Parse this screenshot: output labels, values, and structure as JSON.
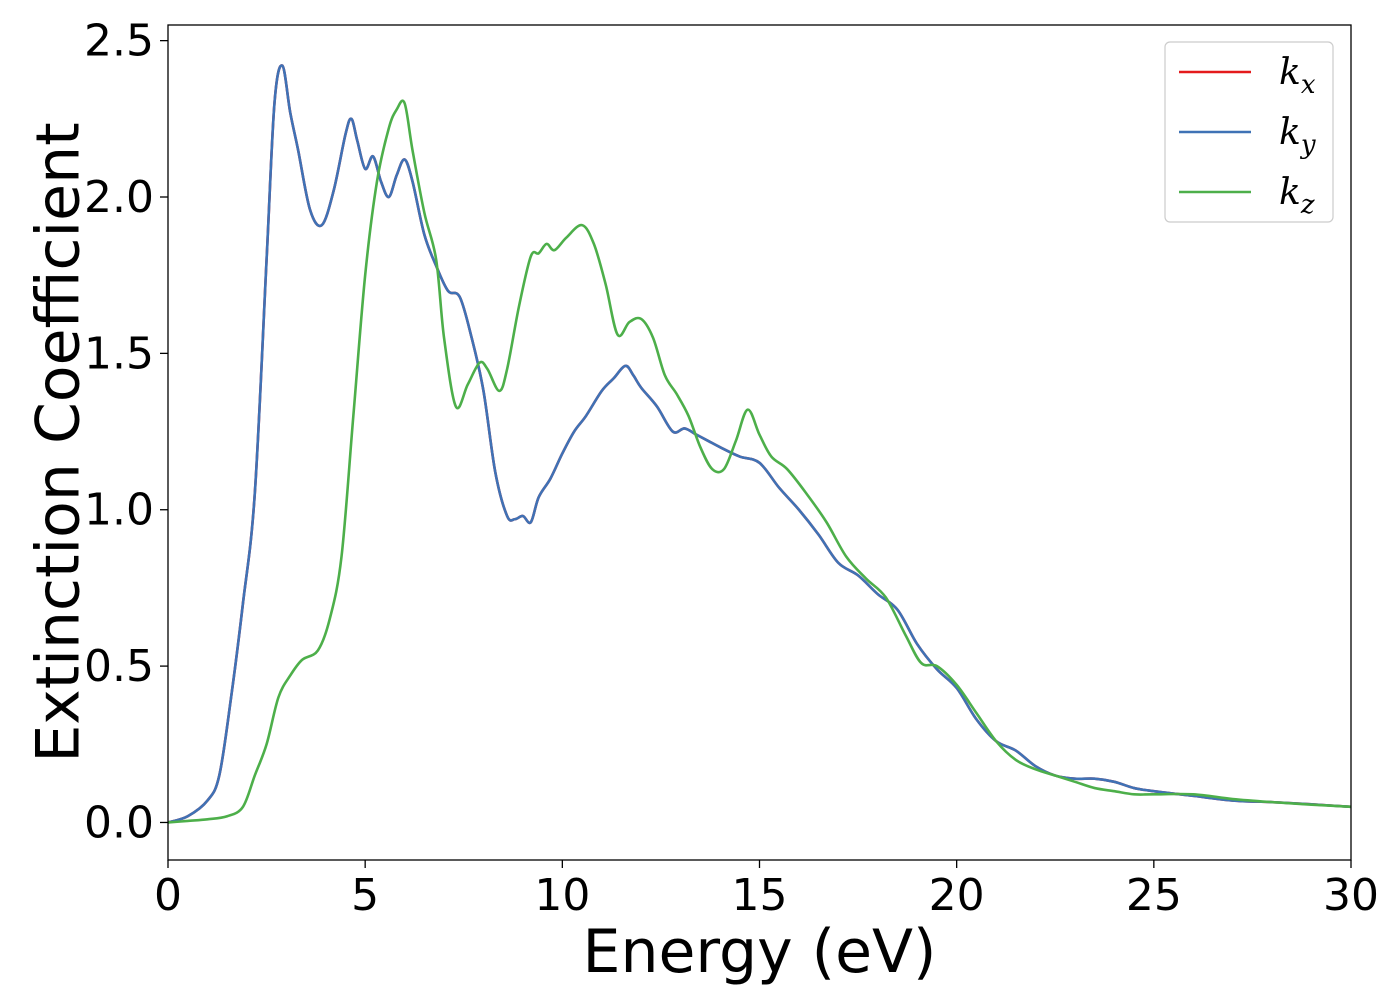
{
  "chart_data": {
    "type": "line",
    "title": "",
    "xlabel": "Energy (eV)",
    "ylabel": "Extinction Coefficient",
    "xlim": [
      0,
      30
    ],
    "ylim": [
      -0.12,
      2.55
    ],
    "xticks": [
      0,
      5,
      10,
      15,
      20,
      25,
      30
    ],
    "xtick_labels": [
      "0",
      "5",
      "10",
      "15",
      "20",
      "25",
      "30"
    ],
    "yticks": [
      0.0,
      0.5,
      1.0,
      1.5,
      2.0,
      2.5
    ],
    "ytick_labels": [
      "0.0",
      "0.5",
      "1.0",
      "1.5",
      "2.0",
      "2.5"
    ],
    "grid": false,
    "legend_position": "top-right",
    "series": [
      {
        "name": "k_x",
        "legend_base": "k",
        "legend_sub": "x",
        "color": "#e41a1c",
        "x": [
          0,
          0.5,
          1.0,
          1.3,
          1.6,
          1.9,
          2.2,
          2.5,
          2.7,
          2.9,
          3.1,
          3.3,
          3.6,
          3.9,
          4.2,
          4.5,
          4.65,
          4.8,
          5.0,
          5.2,
          5.4,
          5.6,
          5.8,
          6.0,
          6.2,
          6.5,
          6.8,
          7.1,
          7.4,
          7.7,
          8.0,
          8.3,
          8.6,
          8.8,
          9.0,
          9.2,
          9.4,
          9.7,
          10.0,
          10.3,
          10.6,
          11.0,
          11.3,
          11.6,
          11.8,
          12.0,
          12.4,
          12.8,
          13.1,
          13.4,
          13.7,
          14.0,
          14.5,
          15.0,
          15.5,
          16.0,
          16.5,
          17.0,
          17.5,
          18.0,
          18.5,
          19.0,
          19.5,
          20.0,
          20.5,
          21.0,
          21.5,
          22.0,
          22.5,
          23.0,
          23.5,
          24.0,
          24.5,
          25.0,
          26.0,
          27.0,
          28.0,
          29.0,
          30.0
        ],
        "y": [
          0.0,
          0.02,
          0.07,
          0.15,
          0.4,
          0.7,
          1.05,
          1.8,
          2.3,
          2.42,
          2.27,
          2.15,
          1.96,
          1.91,
          2.02,
          2.2,
          2.25,
          2.18,
          2.09,
          2.13,
          2.05,
          2.0,
          2.07,
          2.12,
          2.05,
          1.88,
          1.78,
          1.7,
          1.68,
          1.55,
          1.38,
          1.12,
          0.98,
          0.97,
          0.98,
          0.96,
          1.04,
          1.1,
          1.18,
          1.25,
          1.3,
          1.38,
          1.42,
          1.46,
          1.43,
          1.39,
          1.33,
          1.25,
          1.26,
          1.24,
          1.22,
          1.2,
          1.17,
          1.15,
          1.07,
          1.0,
          0.92,
          0.83,
          0.79,
          0.73,
          0.68,
          0.57,
          0.49,
          0.43,
          0.33,
          0.26,
          0.23,
          0.18,
          0.15,
          0.14,
          0.14,
          0.13,
          0.11,
          0.1,
          0.085,
          0.07,
          0.065,
          0.058,
          0.05
        ]
      },
      {
        "name": "k_y",
        "legend_base": "k",
        "legend_sub": "y",
        "color": "#3f72b5",
        "x": [
          0,
          0.5,
          1.0,
          1.3,
          1.6,
          1.9,
          2.2,
          2.5,
          2.7,
          2.9,
          3.1,
          3.3,
          3.6,
          3.9,
          4.2,
          4.5,
          4.65,
          4.8,
          5.0,
          5.2,
          5.4,
          5.6,
          5.8,
          6.0,
          6.2,
          6.5,
          6.8,
          7.1,
          7.4,
          7.7,
          8.0,
          8.3,
          8.6,
          8.8,
          9.0,
          9.2,
          9.4,
          9.7,
          10.0,
          10.3,
          10.6,
          11.0,
          11.3,
          11.6,
          11.8,
          12.0,
          12.4,
          12.8,
          13.1,
          13.4,
          13.7,
          14.0,
          14.5,
          15.0,
          15.5,
          16.0,
          16.5,
          17.0,
          17.5,
          18.0,
          18.5,
          19.0,
          19.5,
          20.0,
          20.5,
          21.0,
          21.5,
          22.0,
          22.5,
          23.0,
          23.5,
          24.0,
          24.5,
          25.0,
          26.0,
          27.0,
          28.0,
          29.0,
          30.0
        ],
        "y": [
          0.0,
          0.02,
          0.07,
          0.15,
          0.4,
          0.7,
          1.05,
          1.8,
          2.3,
          2.42,
          2.27,
          2.15,
          1.96,
          1.91,
          2.02,
          2.2,
          2.25,
          2.18,
          2.09,
          2.13,
          2.05,
          2.0,
          2.07,
          2.12,
          2.05,
          1.88,
          1.78,
          1.7,
          1.68,
          1.55,
          1.38,
          1.12,
          0.98,
          0.97,
          0.98,
          0.96,
          1.04,
          1.1,
          1.18,
          1.25,
          1.3,
          1.38,
          1.42,
          1.46,
          1.43,
          1.39,
          1.33,
          1.25,
          1.26,
          1.24,
          1.22,
          1.2,
          1.17,
          1.15,
          1.07,
          1.0,
          0.92,
          0.83,
          0.79,
          0.73,
          0.68,
          0.57,
          0.49,
          0.43,
          0.33,
          0.26,
          0.23,
          0.18,
          0.15,
          0.14,
          0.14,
          0.13,
          0.11,
          0.1,
          0.085,
          0.07,
          0.065,
          0.058,
          0.05
        ]
      },
      {
        "name": "k_z",
        "legend_base": "k",
        "legend_sub": "z",
        "color": "#4daf4a",
        "x": [
          0,
          0.5,
          1.0,
          1.5,
          1.9,
          2.2,
          2.5,
          2.8,
          3.1,
          3.4,
          3.8,
          4.1,
          4.4,
          4.7,
          5.0,
          5.3,
          5.6,
          5.8,
          6.0,
          6.2,
          6.5,
          6.8,
          7.0,
          7.3,
          7.6,
          7.9,
          8.1,
          8.4,
          8.6,
          8.9,
          9.2,
          9.4,
          9.6,
          9.8,
          10.1,
          10.5,
          10.8,
          11.1,
          11.4,
          11.7,
          12.0,
          12.3,
          12.6,
          12.9,
          13.2,
          13.5,
          13.8,
          14.1,
          14.4,
          14.7,
          15.0,
          15.3,
          15.7,
          16.2,
          16.7,
          17.2,
          17.7,
          18.2,
          18.7,
          19.1,
          19.5,
          20.0,
          20.5,
          21.0,
          21.5,
          22.0,
          22.5,
          23.0,
          23.5,
          24.0,
          24.5,
          25.0,
          26.0,
          27.0,
          28.0,
          29.0,
          30.0
        ],
        "y": [
          0.0,
          0.005,
          0.01,
          0.02,
          0.05,
          0.15,
          0.25,
          0.4,
          0.47,
          0.52,
          0.55,
          0.65,
          0.85,
          1.3,
          1.75,
          2.05,
          2.22,
          2.28,
          2.3,
          2.15,
          1.95,
          1.8,
          1.55,
          1.33,
          1.4,
          1.47,
          1.45,
          1.38,
          1.45,
          1.65,
          1.81,
          1.82,
          1.85,
          1.83,
          1.87,
          1.91,
          1.85,
          1.72,
          1.56,
          1.6,
          1.61,
          1.55,
          1.43,
          1.37,
          1.3,
          1.2,
          1.13,
          1.13,
          1.22,
          1.32,
          1.24,
          1.17,
          1.13,
          1.05,
          0.96,
          0.85,
          0.78,
          0.72,
          0.6,
          0.51,
          0.5,
          0.44,
          0.35,
          0.26,
          0.2,
          0.17,
          0.15,
          0.13,
          0.11,
          0.1,
          0.09,
          0.09,
          0.09,
          0.075,
          0.065,
          0.057,
          0.05
        ]
      }
    ]
  }
}
